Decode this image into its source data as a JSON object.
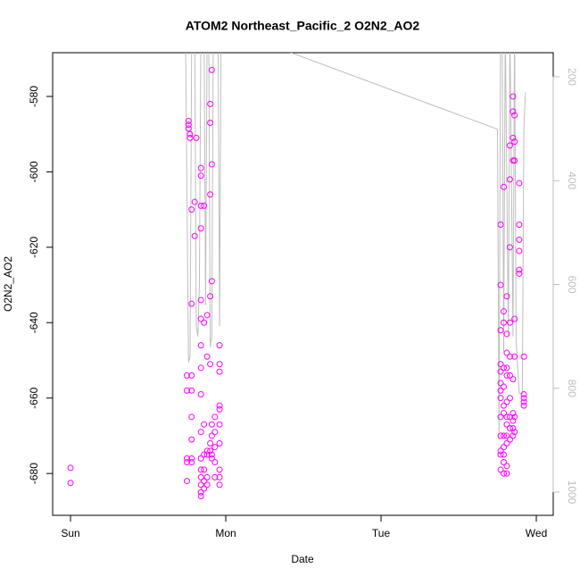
{
  "chart_data": {
    "type": "scatter",
    "title": "ATOM2 Northeast_Pacific_2 O2N2_AO2",
    "xlabel": "Date",
    "ylabel": "O2N2_AO2",
    "x": [
      0,
      0,
      0.76,
      0.76,
      0.76,
      0.77,
      0.77,
      0.81,
      0.78,
      0.78,
      0.78,
      0.78,
      0.78,
      0.78,
      0.78,
      0.78,
      0.8,
      0.8,
      0.75,
      0.75,
      0.75,
      0.75,
      0.75,
      0.84,
      0.84,
      0.84,
      0.84,
      0.84,
      0.84,
      0.84,
      0.84,
      0.84,
      0.84,
      0.84,
      0.84,
      0.84,
      0.84,
      0.84,
      0.84,
      0.86,
      0.86,
      0.86,
      0.86,
      0.86,
      0.86,
      0.86,
      0.88,
      0.88,
      0.88,
      0.88,
      0.88,
      0.88,
      0.9,
      0.9,
      0.9,
      0.9,
      0.9,
      0.9,
      0.9,
      0.91,
      0.91,
      0.91,
      0.91,
      0.91,
      0.91,
      0.91,
      0.93,
      0.93,
      0.93,
      0.93,
      0.93,
      0.96,
      0.96,
      0.96,
      0.96,
      0.96,
      0.96,
      0.96,
      0.96,
      0.96,
      0.96,
      2.77,
      2.77,
      2.77,
      2.77,
      2.77,
      2.77,
      2.77,
      2.77,
      2.77,
      2.77,
      2.77,
      2.77,
      2.77,
      2.79,
      2.79,
      2.79,
      2.79,
      2.79,
      2.79,
      2.79,
      2.79,
      2.79,
      2.79,
      2.79,
      2.79,
      2.81,
      2.81,
      2.81,
      2.81,
      2.81,
      2.81,
      2.81,
      2.81,
      2.81,
      2.81,
      2.81,
      2.81,
      2.83,
      2.83,
      2.83,
      2.83,
      2.83,
      2.83,
      2.83,
      2.83,
      2.83,
      2.83,
      2.85,
      2.85,
      2.85,
      2.85,
      2.85,
      2.85,
      2.85,
      2.85,
      2.85,
      2.86,
      2.86,
      2.86,
      2.86,
      2.86,
      2.86,
      2.86,
      2.89,
      2.89,
      2.89,
      2.89,
      2.89,
      2.89,
      2.92,
      2.92,
      2.92,
      2.92,
      2.92
    ],
    "values": [
      -678.5,
      -682.5,
      -586.5,
      -587.5,
      -588.5,
      -590,
      -591,
      -591,
      -610,
      -635,
      -654,
      -658,
      -665,
      -671,
      -676,
      -677,
      -617,
      -608,
      -654,
      -658,
      -676,
      -677,
      -682,
      -599,
      -601,
      -609,
      -615,
      -634,
      -646,
      -652,
      -659,
      -669,
      -676,
      -679,
      -681,
      -683,
      -685,
      -686,
      -639,
      -609,
      -640,
      -667,
      -675,
      -679,
      -682,
      -684,
      -638,
      -649,
      -674,
      -675,
      -681,
      -683,
      -582,
      -587,
      -606,
      -633,
      -651,
      -672,
      -674,
      -573,
      -598,
      -629,
      -667,
      -670,
      -675,
      -676,
      -665,
      -669,
      -673,
      -677,
      -681,
      -646,
      -651,
      -653,
      -662,
      -663,
      -667,
      -672,
      -679,
      -681,
      -683,
      -614,
      -630,
      -642,
      -651,
      -653,
      -656,
      -658,
      -660,
      -665,
      -670,
      -674,
      -675,
      -679,
      -604,
      -637,
      -640,
      -652,
      -657,
      -662,
      -664,
      -670,
      -673,
      -675,
      -677,
      -680,
      -633,
      -643,
      -648,
      -652,
      -654,
      -661,
      -665,
      -667,
      -670,
      -672,
      -678,
      -680,
      -593,
      -602,
      -620,
      -640,
      -649,
      -654,
      -660,
      -665,
      -668,
      -671,
      -580,
      -584,
      -591,
      -597,
      -655,
      -664,
      -666,
      -668,
      -670,
      -585,
      -592,
      -597,
      -639,
      -649,
      -665,
      -669,
      -603,
      -614,
      -618,
      -621,
      -626,
      -627,
      -649,
      -659,
      -660,
      -661,
      -662
    ],
    "color": "#ff00ff",
    "line": {
      "axis": "y2",
      "color": "#bebebe",
      "x": [
        0.74,
        0.76,
        0.77,
        0.78,
        0.8,
        0.81,
        0.82,
        0.83,
        0.84,
        0.86,
        0.87,
        0.88,
        0.89,
        0.9,
        0.91,
        0.92,
        0.95,
        0.96,
        0.97,
        1.0,
        2.75,
        2.76,
        2.77,
        2.78,
        2.79,
        2.8,
        2.82,
        2.83,
        2.85,
        2.86,
        2.87,
        2.89,
        2.91,
        2.92,
        2.93
      ],
      "values": [
        100,
        750,
        740,
        150,
        100,
        680,
        700,
        600,
        100,
        100,
        640,
        100,
        100,
        720,
        700,
        100,
        100,
        680,
        100,
        107,
        301,
        900,
        100,
        100,
        730,
        100,
        700,
        100,
        700,
        100,
        710,
        810,
        810,
        300,
        230
      ]
    },
    "xlim": [
      -0.115,
      3.109
    ],
    "xticks": [
      {
        "value": 0,
        "label": "Sun"
      },
      {
        "value": 1,
        "label": "Mon"
      },
      {
        "value": 2,
        "label": "Tue"
      },
      {
        "value": 3,
        "label": "Wed"
      }
    ],
    "ylim": [
      -691.1,
      -568.4
    ],
    "yticks": [
      -680,
      -660,
      -640,
      -620,
      -600,
      -580
    ],
    "y2lim": [
      1044.7,
      153.6
    ],
    "y2ticks": [
      200,
      400,
      600,
      800,
      1000
    ]
  }
}
